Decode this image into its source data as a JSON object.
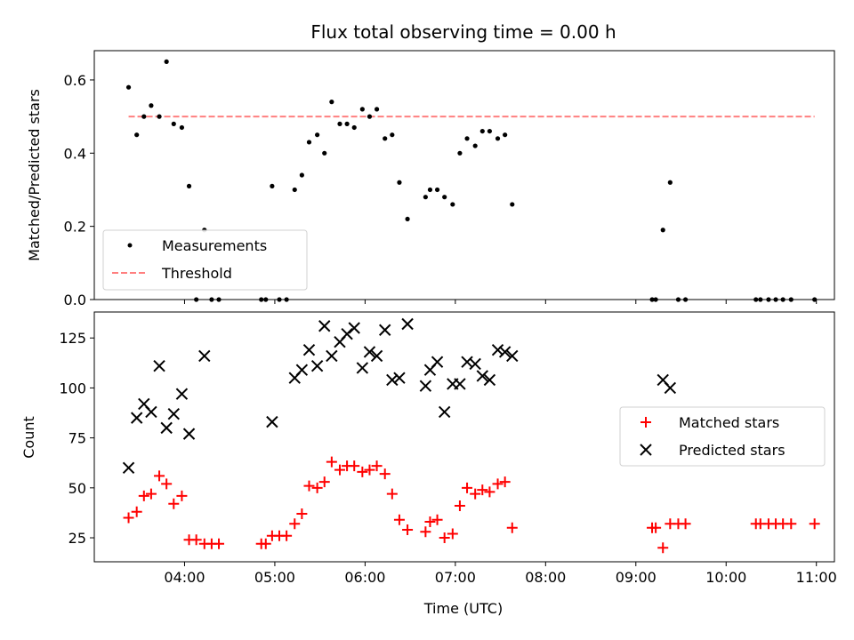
{
  "chart_data": {
    "title": "Flux total observing time = 0.00 h",
    "xlabel": "Time (UTC)",
    "x_unit": "hours UTC",
    "xlim": [
      3.0,
      11.2
    ],
    "x_ticks": [
      {
        "value": 4,
        "label": "04:00"
      },
      {
        "value": 5,
        "label": "05:00"
      },
      {
        "value": 6,
        "label": "06:00"
      },
      {
        "value": 7,
        "label": "07:00"
      },
      {
        "value": 8,
        "label": "08:00"
      },
      {
        "value": 9,
        "label": "09:00"
      },
      {
        "value": 10,
        "label": "10:00"
      },
      {
        "value": 11,
        "label": "11:00"
      }
    ],
    "panels": [
      {
        "id": "ratio",
        "type": "scatter",
        "ylabel": "Matched/Predicted stars",
        "ylim": [
          0,
          0.68
        ],
        "y_ticks": [
          {
            "value": 0,
            "label": "0.0"
          },
          {
            "value": 0.2,
            "label": "0.2"
          },
          {
            "value": 0.4,
            "label": "0.4"
          },
          {
            "value": 0.6,
            "label": "0.6"
          }
        ],
        "legend_position": "lower-left",
        "threshold": {
          "name": "Threshold",
          "y": 0.5,
          "x_range": [
            3.38,
            10.98
          ],
          "color": "#ff7f7f"
        },
        "series": [
          {
            "name": "Measurements",
            "marker": "dot",
            "color": "#000000",
            "x": [
              3.38,
              3.47,
              3.55,
              3.63,
              3.72,
              3.8,
              3.88,
              3.97,
              4.05,
              4.13,
              4.22,
              4.3,
              4.38,
              4.85,
              4.9,
              4.97,
              5.05,
              5.13,
              5.22,
              5.3,
              5.38,
              5.47,
              5.55,
              5.63,
              5.72,
              5.8,
              5.88,
              5.97,
              6.05,
              6.13,
              6.22,
              6.3,
              6.38,
              6.47,
              6.67,
              6.72,
              6.8,
              6.88,
              6.97,
              7.05,
              7.13,
              7.22,
              7.3,
              7.38,
              7.47,
              7.55,
              7.63,
              9.18,
              9.22,
              9.3,
              9.38,
              9.47,
              9.55,
              10.33,
              10.38,
              10.47,
              10.55,
              10.63,
              10.72,
              10.98
            ],
            "y": [
              0.58,
              0.45,
              0.5,
              0.53,
              0.5,
              0.65,
              0.48,
              0.47,
              0.31,
              0.0,
              0.19,
              0.0,
              0.0,
              0.0,
              0.0,
              0.31,
              0.0,
              0.0,
              0.3,
              0.34,
              0.43,
              0.45,
              0.4,
              0.54,
              0.48,
              0.48,
              0.47,
              0.52,
              0.5,
              0.52,
              0.44,
              0.45,
              0.32,
              0.22,
              0.28,
              0.3,
              0.3,
              0.28,
              0.26,
              0.4,
              0.44,
              0.42,
              0.46,
              0.46,
              0.44,
              0.45,
              0.26,
              0.0,
              0.0,
              0.19,
              0.32,
              0.0,
              0.0,
              0.0,
              0.0,
              0.0,
              0.0,
              0.0,
              0.0,
              0.0
            ]
          }
        ]
      },
      {
        "id": "count",
        "type": "scatter",
        "ylabel": "Count",
        "ylim": [
          13,
          138
        ],
        "y_ticks": [
          {
            "value": 25,
            "label": "25"
          },
          {
            "value": 50,
            "label": "50"
          },
          {
            "value": 75,
            "label": "75"
          },
          {
            "value": 100,
            "label": "100"
          },
          {
            "value": 125,
            "label": "125"
          }
        ],
        "legend_position": "center-right",
        "series": [
          {
            "name": "Matched stars",
            "marker": "plus",
            "color": "#ff0000",
            "x": [
              3.38,
              3.47,
              3.55,
              3.63,
              3.72,
              3.8,
              3.88,
              3.97,
              4.05,
              4.13,
              4.22,
              4.3,
              4.38,
              4.85,
              4.9,
              4.97,
              5.05,
              5.13,
              5.22,
              5.3,
              5.38,
              5.47,
              5.55,
              5.63,
              5.72,
              5.8,
              5.88,
              5.97,
              6.05,
              6.13,
              6.22,
              6.3,
              6.38,
              6.47,
              6.67,
              6.72,
              6.8,
              6.88,
              6.97,
              7.05,
              7.13,
              7.22,
              7.3,
              7.38,
              7.47,
              7.55,
              7.63,
              9.18,
              9.22,
              9.3,
              9.38,
              9.47,
              9.55,
              10.33,
              10.38,
              10.47,
              10.55,
              10.63,
              10.72,
              10.98
            ],
            "y": [
              35,
              38,
              46,
              47,
              56,
              52,
              42,
              46,
              24,
              24,
              22,
              22,
              22,
              22,
              22,
              26,
              26,
              26,
              32,
              37,
              51,
              50,
              53,
              63,
              59,
              61,
              61,
              58,
              59,
              61,
              57,
              47,
              34,
              29,
              28,
              33,
              34,
              25,
              27,
              41,
              50,
              47,
              49,
              48,
              52,
              53,
              30,
              30,
              30,
              20,
              32,
              32,
              32,
              32,
              32,
              32,
              32,
              32,
              32,
              32
            ]
          },
          {
            "name": "Predicted stars",
            "marker": "x",
            "color": "#000000",
            "x": [
              3.38,
              3.47,
              3.55,
              3.63,
              3.72,
              3.8,
              3.88,
              3.97,
              4.05,
              4.22,
              4.97,
              5.22,
              5.3,
              5.38,
              5.47,
              5.55,
              5.63,
              5.72,
              5.8,
              5.88,
              5.97,
              6.05,
              6.13,
              6.22,
              6.3,
              6.38,
              6.47,
              6.67,
              6.72,
              6.8,
              6.88,
              6.97,
              7.05,
              7.13,
              7.22,
              7.3,
              7.38,
              7.47,
              7.55,
              7.63,
              9.3,
              9.38
            ],
            "y": [
              60,
              85,
              92,
              88,
              111,
              80,
              87,
              97,
              77,
              116,
              83,
              105,
              109,
              119,
              111,
              131,
              116,
              123,
              127,
              130,
              110,
              118,
              116,
              129,
              104,
              105,
              132,
              101,
              109,
              113,
              88,
              102,
              102,
              113,
              112,
              106,
              104,
              119,
              118,
              116,
              104,
              100
            ]
          }
        ]
      }
    ]
  }
}
